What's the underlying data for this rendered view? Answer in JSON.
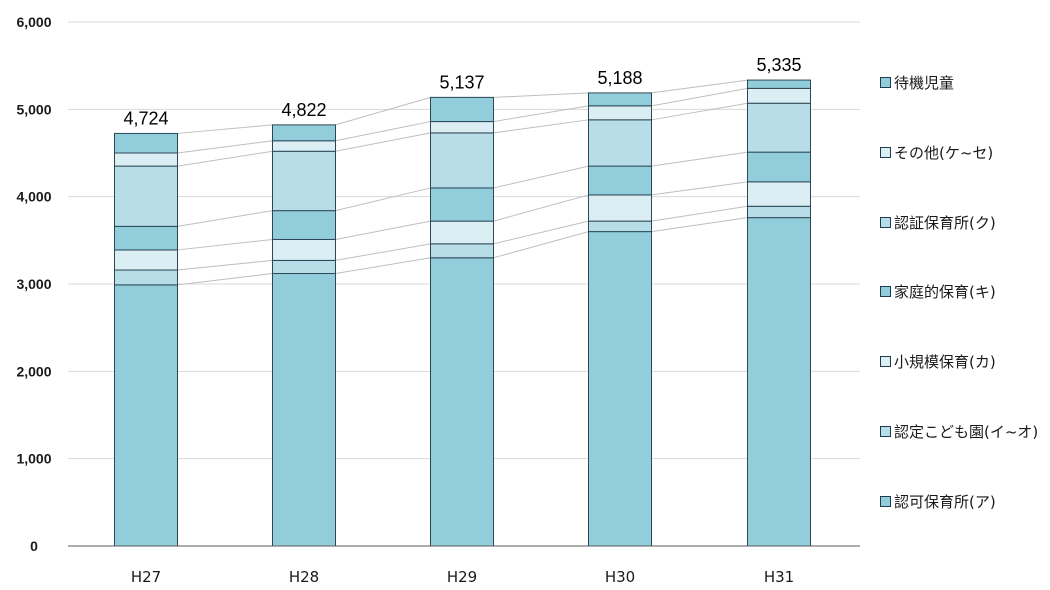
{
  "chart_data": {
    "type": "bar",
    "stacked": true,
    "categories": [
      "H27",
      "H28",
      "H29",
      "H30",
      "H31"
    ],
    "totals": [
      "4,724",
      "4,822",
      "5,137",
      "5,188",
      "5,335"
    ],
    "ylim": [
      0,
      6000
    ],
    "yticks": [
      "0",
      "1,000",
      "2,000",
      "3,000",
      "4,000",
      "5,000",
      "6,000"
    ],
    "grid": true,
    "legend_position": "right",
    "series": [
      {
        "name": "認可保育所(ア)",
        "color": "#92cddc",
        "values": [
          2990,
          3120,
          3300,
          3600,
          3760
        ]
      },
      {
        "name": "認定こども園(イ~オ)",
        "color": "#b7dee8",
        "values": [
          170,
          150,
          160,
          120,
          130
        ]
      },
      {
        "name": "小規模保育(カ)",
        "color": "#daeef3",
        "values": [
          230,
          240,
          260,
          300,
          280
        ]
      },
      {
        "name": "家庭的保育(キ)",
        "color": "#92cddc",
        "values": [
          270,
          330,
          380,
          330,
          340
        ]
      },
      {
        "name": "認証保育所(ク)",
        "color": "#b7dee8",
        "values": [
          690,
          680,
          630,
          530,
          560
        ]
      },
      {
        "name": "その他(ケ~セ)",
        "color": "#daeef3",
        "values": [
          150,
          120,
          130,
          160,
          170
        ]
      },
      {
        "name": "待機児童",
        "color": "#92cddc",
        "values": [
          224,
          182,
          277,
          148,
          95
        ]
      }
    ]
  }
}
